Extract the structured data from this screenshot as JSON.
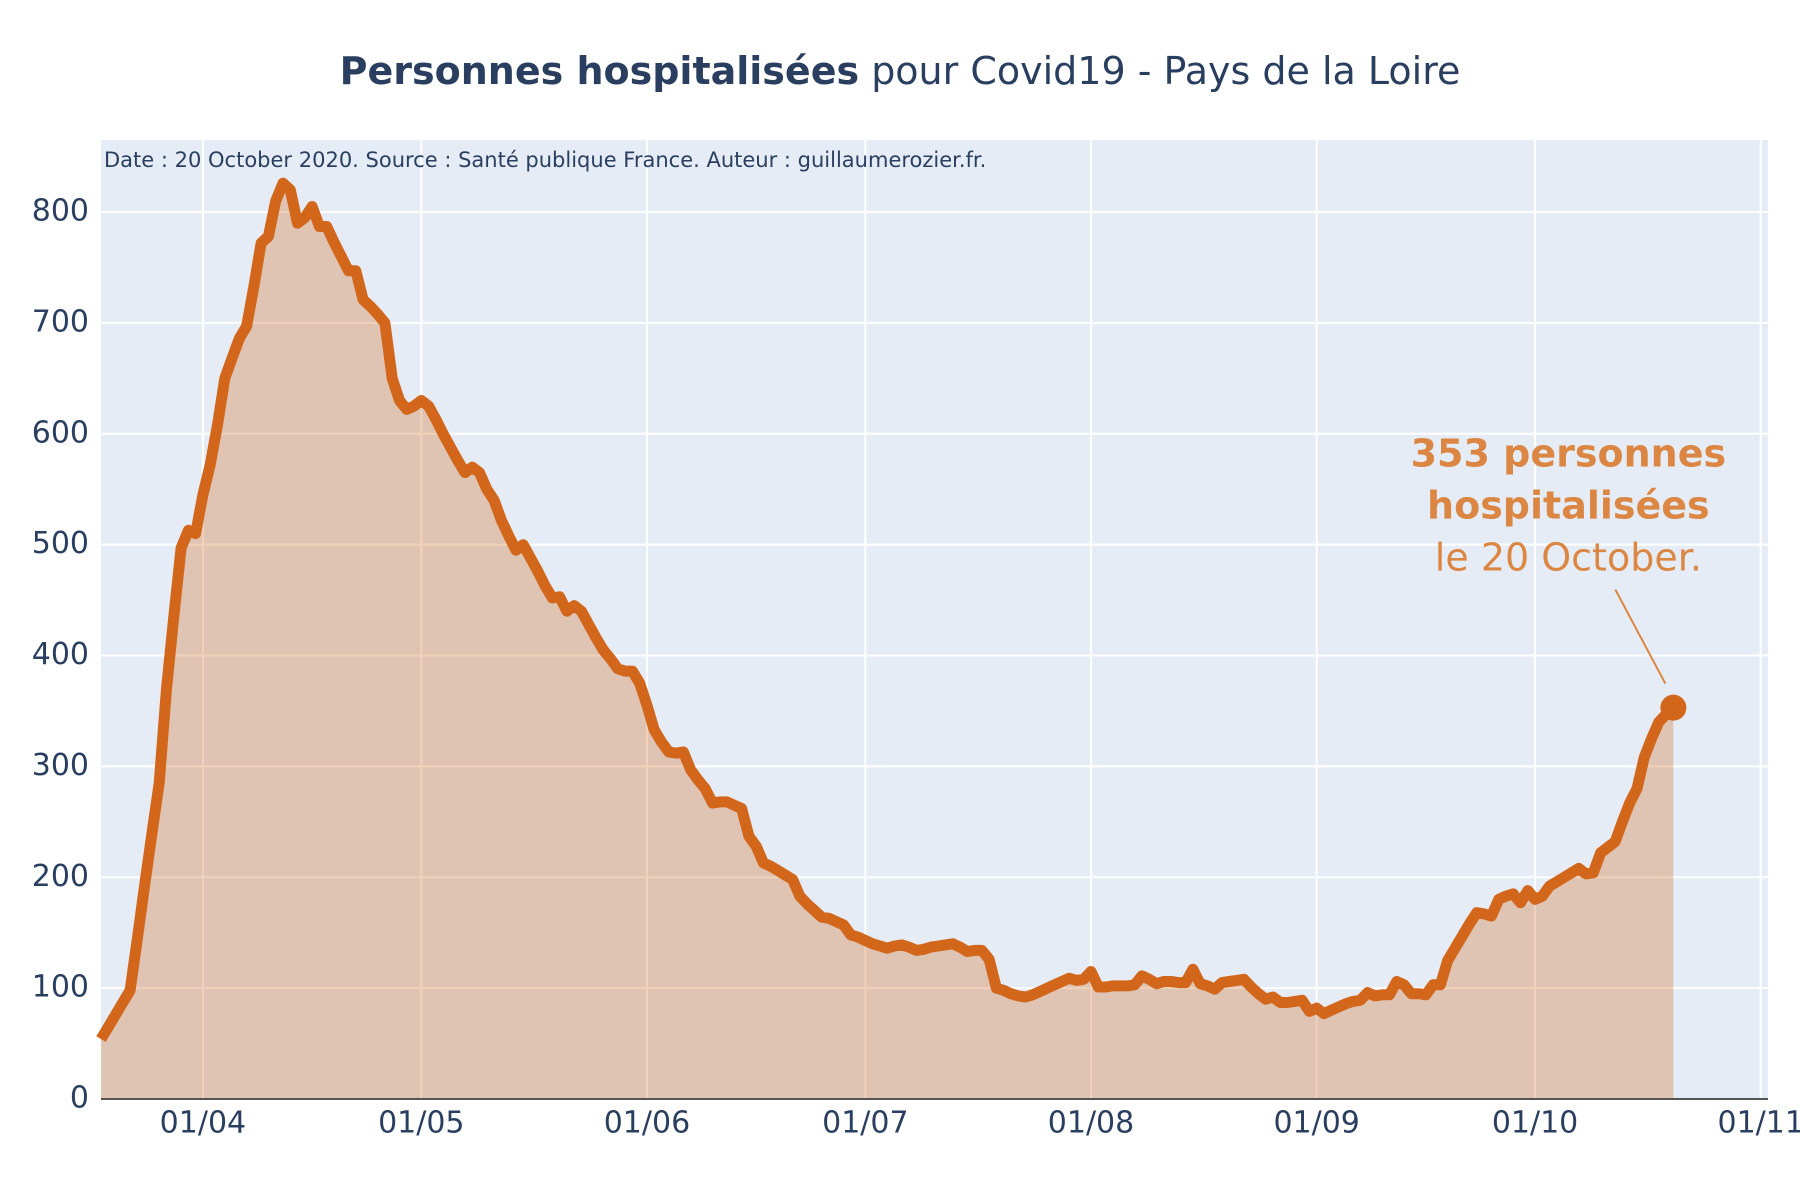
{
  "chart_data": {
    "type": "area",
    "title_bold": "Personnes hospitalisées",
    "title_rest": "pour Covid19 - Pays de la Loire",
    "subtitle": "Date : 20 October 2020. Source : Santé publique France. Auteur : guillaumerozier.fr.",
    "annotation": {
      "bold_lines": [
        "353 personnes",
        "hospitalisées"
      ],
      "text": "le 20 October.",
      "color": "#db8743"
    },
    "x": [
      "18/03",
      "19/03",
      "20/03",
      "21/03",
      "22/03",
      "23/03",
      "24/03",
      "25/03",
      "26/03",
      "27/03",
      "28/03",
      "29/03",
      "30/03",
      "31/03",
      "01/04",
      "02/04",
      "03/04",
      "04/04",
      "05/04",
      "06/04",
      "07/04",
      "08/04",
      "09/04",
      "10/04",
      "11/04",
      "12/04",
      "13/04",
      "14/04",
      "15/04",
      "16/04",
      "17/04",
      "18/04",
      "19/04",
      "20/04",
      "21/04",
      "22/04",
      "23/04",
      "24/04",
      "25/04",
      "26/04",
      "27/04",
      "28/04",
      "29/04",
      "30/04",
      "01/05",
      "02/05",
      "03/05",
      "04/05",
      "05/05",
      "06/05",
      "07/05",
      "08/05",
      "09/05",
      "10/05",
      "11/05",
      "12/05",
      "13/05",
      "14/05",
      "15/05",
      "16/05",
      "17/05",
      "18/05",
      "19/05",
      "20/05",
      "21/05",
      "22/05",
      "23/05",
      "24/05",
      "25/05",
      "26/05",
      "27/05",
      "28/05",
      "29/05",
      "30/05",
      "31/05",
      "01/06",
      "02/06",
      "03/06",
      "04/06",
      "05/06",
      "06/06",
      "07/06",
      "08/06",
      "09/06",
      "10/06",
      "11/06",
      "12/06",
      "13/06",
      "14/06",
      "15/06",
      "16/06",
      "17/06",
      "18/06",
      "19/06",
      "20/06",
      "21/06",
      "22/06",
      "23/06",
      "24/06",
      "25/06",
      "26/06",
      "27/06",
      "28/06",
      "29/06",
      "30/06",
      "01/07",
      "02/07",
      "03/07",
      "04/07",
      "05/07",
      "06/07",
      "07/07",
      "08/07",
      "09/07",
      "10/07",
      "11/07",
      "12/07",
      "13/07",
      "14/07",
      "15/07",
      "16/07",
      "17/07",
      "18/07",
      "19/07",
      "20/07",
      "21/07",
      "22/07",
      "23/07",
      "24/07",
      "25/07",
      "26/07",
      "27/07",
      "28/07",
      "29/07",
      "30/07",
      "31/07",
      "01/08",
      "02/08",
      "03/08",
      "04/08",
      "05/08",
      "06/08",
      "07/08",
      "08/08",
      "09/08",
      "10/08",
      "11/08",
      "12/08",
      "13/08",
      "14/08",
      "15/08",
      "16/08",
      "17/08",
      "18/08",
      "19/08",
      "20/08",
      "21/08",
      "22/08",
      "23/08",
      "24/08",
      "25/08",
      "26/08",
      "27/08",
      "28/08",
      "29/08",
      "30/08",
      "31/08",
      "01/09",
      "02/09",
      "03/09",
      "04/09",
      "05/09",
      "06/09",
      "07/09",
      "08/09",
      "09/09",
      "10/09",
      "11/09",
      "12/09",
      "13/09",
      "14/09",
      "15/09",
      "16/09",
      "17/09",
      "18/09",
      "19/09",
      "20/09",
      "21/09",
      "22/09",
      "23/09",
      "24/09",
      "25/09",
      "26/09",
      "27/09",
      "28/09",
      "29/09",
      "30/09",
      "01/10",
      "02/10",
      "03/10",
      "04/10",
      "05/10",
      "06/10",
      "07/10",
      "08/10",
      "09/10",
      "10/10",
      "11/10",
      "12/10",
      "13/10",
      "14/10",
      "15/10",
      "16/10",
      "17/10",
      "18/10",
      "19/10",
      "20/10"
    ],
    "series": [
      {
        "name": "Personnes hospitalisées",
        "color": "#d2671c",
        "fill": "rgba(210,103,28,0.3)",
        "values": [
          54,
          65,
          76,
          87,
          98,
          145,
          193,
          240,
          285,
          370,
          435,
          497,
          513,
          510,
          545,
          572,
          608,
          650,
          668,
          686,
          697,
          733,
          772,
          778,
          810,
          826,
          820,
          790,
          795,
          805,
          787,
          787,
          773,
          760,
          747,
          747,
          721,
          715,
          708,
          700,
          650,
          630,
          622,
          625,
          630,
          625,
          613,
          600,
          588,
          576,
          565,
          570,
          565,
          550,
          540,
          522,
          508,
          495,
          500,
          488,
          476,
          463,
          452,
          453,
          440,
          445,
          440,
          428,
          416,
          405,
          397,
          388,
          386,
          386,
          375,
          355,
          333,
          322,
          313,
          312,
          313,
          297,
          288,
          280,
          267,
          268,
          268,
          265,
          262,
          237,
          228,
          213,
          210,
          206,
          202,
          198,
          183,
          176,
          170,
          164,
          163,
          160,
          157,
          148,
          146,
          143,
          140,
          138,
          136,
          138,
          139,
          137,
          134,
          135,
          137,
          138,
          139,
          140,
          137,
          133,
          134,
          134,
          126,
          100,
          98,
          95,
          93,
          92,
          94,
          97,
          100,
          103,
          106,
          109,
          107,
          108,
          115,
          101,
          101,
          102,
          102,
          102,
          103,
          111,
          108,
          104,
          106,
          106,
          105,
          105,
          117,
          104,
          102,
          99,
          105,
          106,
          107,
          108,
          101,
          95,
          90,
          92,
          87,
          87,
          88,
          89,
          79,
          82,
          77,
          80,
          83,
          86,
          88,
          89,
          96,
          93,
          94,
          94,
          106,
          103,
          95,
          95,
          94,
          103,
          103,
          125,
          136,
          147,
          158,
          168,
          167,
          165,
          180,
          183,
          185,
          177,
          188,
          180,
          183,
          192,
          196,
          200,
          204,
          208,
          203,
          204,
          222,
          227,
          232,
          250,
          267,
          280,
          308,
          325,
          340,
          347,
          353
        ]
      }
    ],
    "xlim": [
      "18/03",
      "02/11"
    ],
    "xticks": [
      "01/04",
      "01/05",
      "01/06",
      "01/07",
      "01/08",
      "01/09",
      "01/10",
      "01/11"
    ],
    "ylim": [
      0,
      865
    ],
    "yticks": [
      0,
      100,
      200,
      300,
      400,
      500,
      600,
      700,
      800
    ],
    "grid": true
  }
}
